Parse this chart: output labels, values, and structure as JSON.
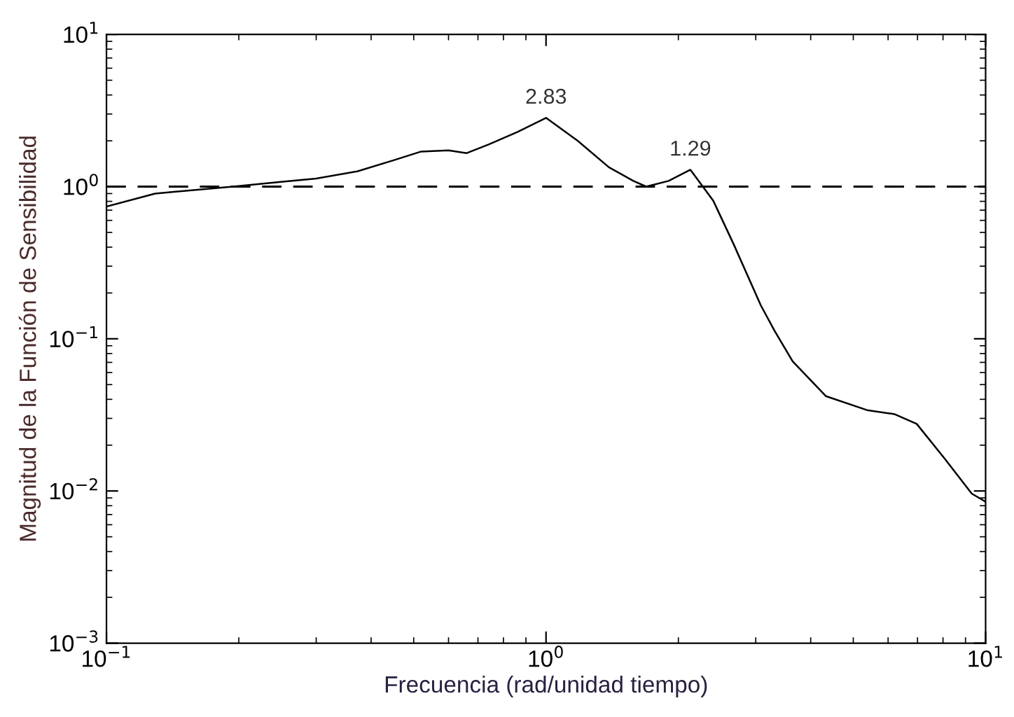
{
  "chart_data": {
    "type": "line",
    "xlabel": "Frecuencia (rad/unidad tiempo)",
    "ylabel": "Magnitud de la Función de Sensibilidad",
    "log": "xy",
    "grid": false,
    "marker": "none",
    "line_style": "solid",
    "xlim": [
      0.1,
      10
    ],
    "ylim": [
      0.001,
      10
    ],
    "xticks": [
      {
        "value": 0.1,
        "label": "10$^{−1}$"
      },
      {
        "value": 1,
        "label": "10$^{0}$"
      },
      {
        "value": 10,
        "label": "10$^{1}$"
      }
    ],
    "yticks": [
      {
        "value": 0.001,
        "label": "10$^{−3}$"
      },
      {
        "value": 0.01,
        "label": "10$^{−2}$"
      },
      {
        "value": 0.1,
        "label": "10$^{−1}$"
      },
      {
        "value": 1,
        "label": "10$^{0}$"
      },
      {
        "value": 10,
        "label": "10$^{1}$"
      }
    ],
    "series": [
      {
        "color": "#000000",
        "x": [
          0.1,
          0.129,
          0.194,
          0.247,
          0.3,
          0.372,
          0.45,
          0.52,
          0.6,
          0.66,
          0.74,
          0.86,
          1.0,
          1.18,
          1.39,
          1.58,
          1.69,
          1.9,
          2.13,
          2.4,
          2.67,
          3.08,
          3.31,
          3.64,
          4.33,
          5.37,
          6.2,
          6.97,
          8.07,
          9.3,
          10
        ],
        "values": [
          0.74,
          0.9,
          1.0,
          1.07,
          1.13,
          1.26,
          1.49,
          1.7,
          1.73,
          1.66,
          1.89,
          2.28,
          2.83,
          2.0,
          1.34,
          1.09,
          1.0,
          1.09,
          1.29,
          0.81,
          0.42,
          0.166,
          0.113,
          0.071,
          0.042,
          0.034,
          0.032,
          0.0276,
          0.0163,
          0.0096,
          0.0085
        ]
      }
    ],
    "ref_lines": [
      {
        "axis": "y",
        "value": 1,
        "color": "#000000",
        "line_style": "dashed"
      }
    ],
    "annotations": [
      {
        "text": "2.83",
        "x": 1.0,
        "y": 2.83
      },
      {
        "text": "1.29",
        "x": 2.13,
        "y": 1.29
      }
    ]
  }
}
